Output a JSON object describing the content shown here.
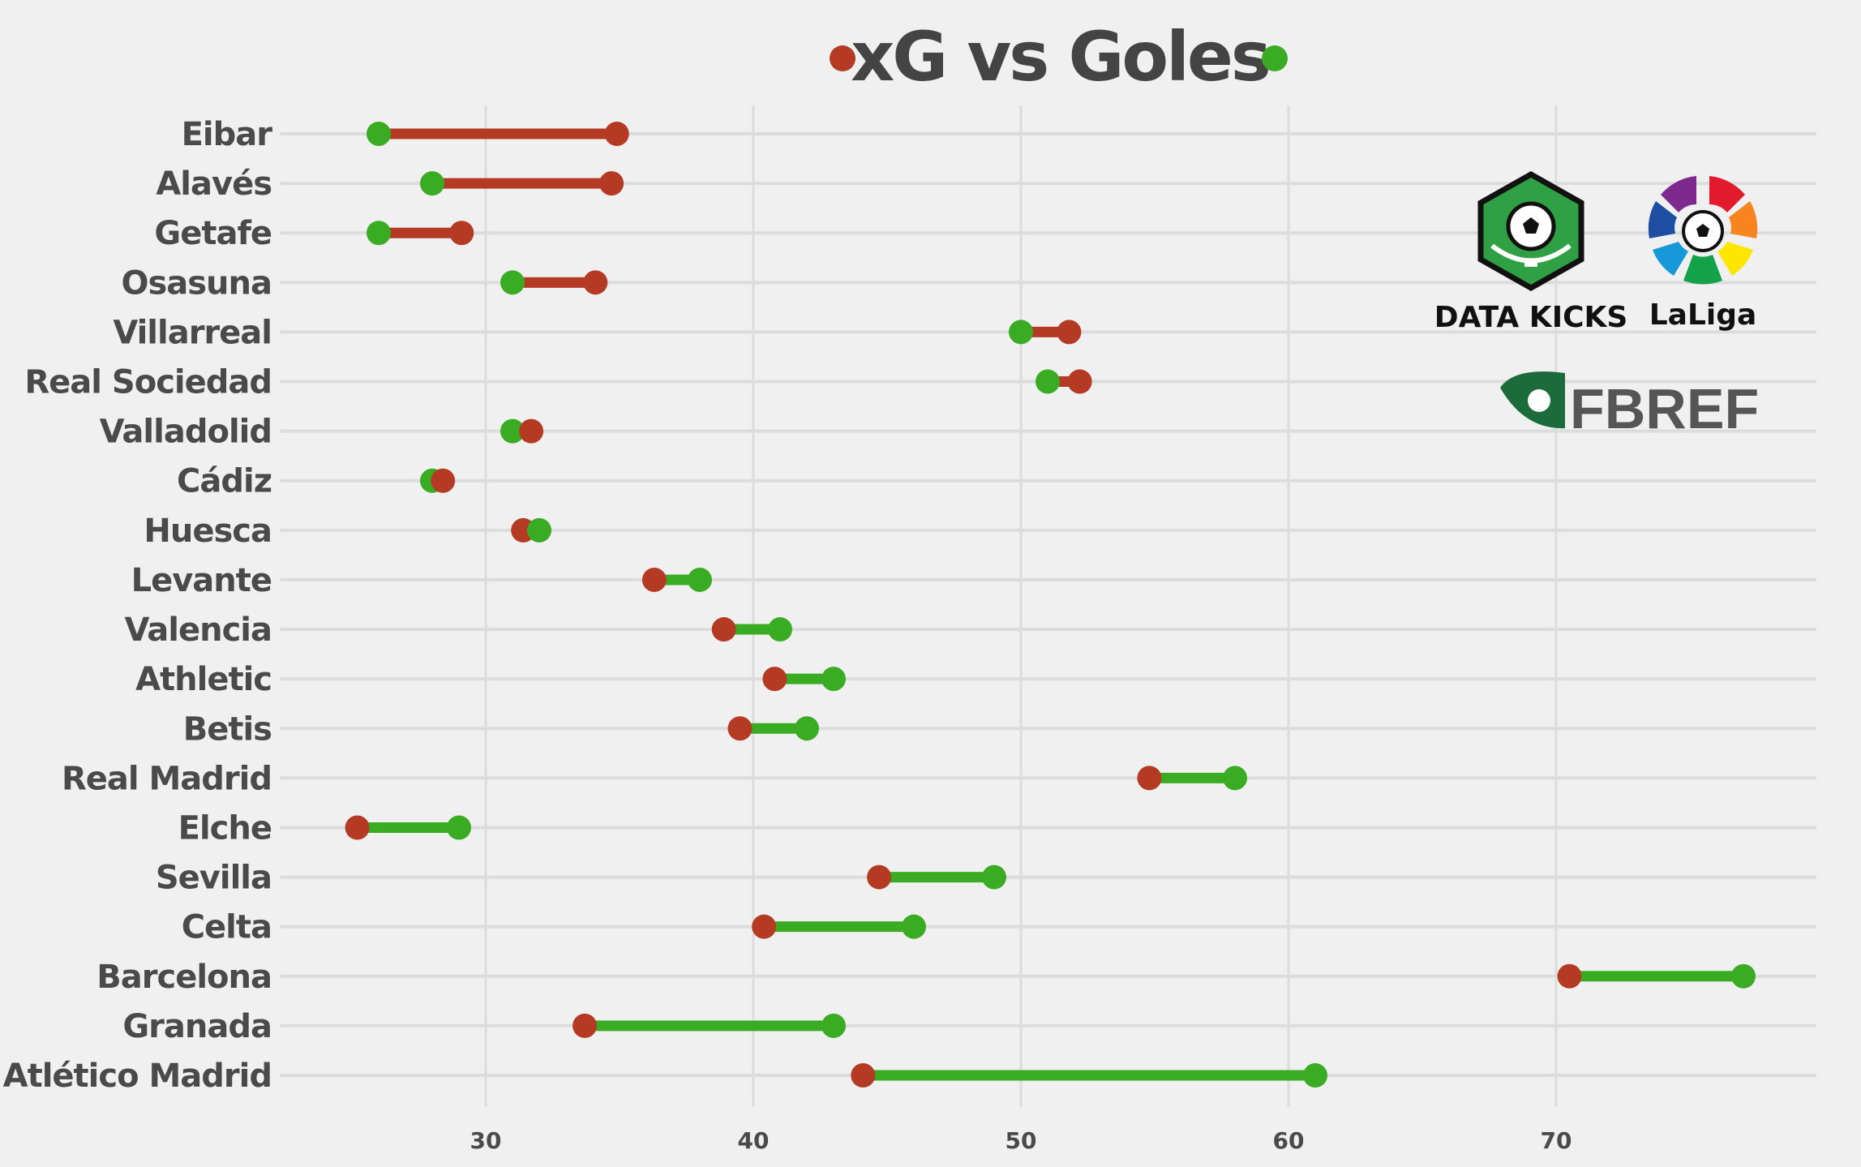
{
  "title": "xG vs Goles",
  "colors": {
    "xg": "#b53a24",
    "goals": "#3aac24",
    "text": "#4a4a4a",
    "grid": "#dcdcdc",
    "background": "#f0f0f0"
  },
  "logos": {
    "data_kicks": "DATA KICKS",
    "laliga": "LaLiga",
    "fbref": "FBREF"
  },
  "chart_data": {
    "type": "dumbbell",
    "title": "xG vs Goles",
    "xlabel": "",
    "ylabel": "",
    "xlim": [
      22,
      79
    ],
    "xticks": [
      30,
      40,
      50,
      60,
      70
    ],
    "grid": true,
    "legend": "title markers (red dot = xG, green dot = Goles)",
    "series": [
      {
        "name": "xG",
        "color": "#b53a24"
      },
      {
        "name": "Goles",
        "color": "#3aac24"
      }
    ],
    "categories": [
      "Eibar",
      "Alavés",
      "Getafe",
      "Osasuna",
      "Villarreal",
      "Real Sociedad",
      "Valladolid",
      "Cádiz",
      "Huesca",
      "Levante",
      "Valencia",
      "Athletic",
      "Betis",
      "Real Madrid",
      "Elche",
      "Sevilla",
      "Celta",
      "Barcelona",
      "Granada",
      "Atlético Madrid"
    ],
    "xg": [
      34.9,
      34.7,
      29.1,
      34.1,
      51.8,
      52.2,
      31.7,
      28.4,
      31.4,
      36.3,
      38.9,
      40.8,
      39.5,
      54.8,
      25.2,
      44.7,
      40.4,
      70.5,
      33.7,
      44.1
    ],
    "goals": [
      26,
      28,
      26,
      31,
      50,
      51,
      31,
      28,
      32,
      38,
      41,
      43,
      42,
      58,
      29,
      49,
      46,
      77,
      43,
      61
    ]
  }
}
